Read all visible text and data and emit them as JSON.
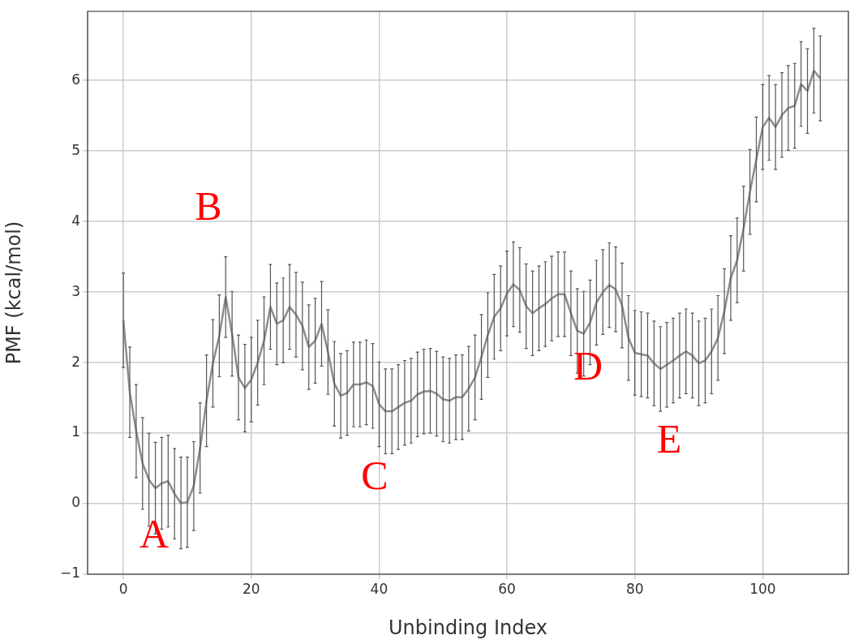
{
  "chart_data": {
    "type": "line",
    "xlabel": "Unbinding Index",
    "ylabel": "PMF (kcal/mol)",
    "x": [
      0,
      1,
      2,
      3,
      4,
      5,
      6,
      7,
      8,
      9,
      10,
      11,
      12,
      13,
      14,
      15,
      16,
      17,
      18,
      19,
      20,
      21,
      22,
      23,
      24,
      25,
      26,
      27,
      28,
      29,
      30,
      31,
      32,
      33,
      34,
      35,
      36,
      37,
      38,
      39,
      40,
      41,
      42,
      43,
      44,
      45,
      46,
      47,
      48,
      49,
      50,
      51,
      52,
      53,
      54,
      55,
      56,
      57,
      58,
      59,
      60,
      61,
      62,
      63,
      64,
      65,
      66,
      67,
      68,
      69,
      70,
      71,
      72,
      73,
      74,
      75,
      76,
      77,
      78,
      79,
      80,
      81,
      82,
      83,
      84,
      85,
      86,
      87,
      88,
      89,
      90,
      91,
      92,
      93,
      94,
      95,
      96,
      97,
      98,
      99,
      100,
      101,
      102,
      103,
      104,
      105,
      106,
      107,
      108,
      109
    ],
    "series": [
      {
        "color": "#8c8c8c",
        "values": [
          2.6,
          1.58,
          1.03,
          0.57,
          0.34,
          0.22,
          0.29,
          0.32,
          0.14,
          0.01,
          0.02,
          0.25,
          0.79,
          1.46,
          1.99,
          2.38,
          2.93,
          2.41,
          1.79,
          1.64,
          1.76,
          2.0,
          2.31,
          2.79,
          2.55,
          2.6,
          2.79,
          2.68,
          2.52,
          2.22,
          2.31,
          2.55,
          2.15,
          1.7,
          1.53,
          1.57,
          1.69,
          1.69,
          1.72,
          1.67,
          1.41,
          1.31,
          1.31,
          1.37,
          1.43,
          1.46,
          1.55,
          1.59,
          1.6,
          1.56,
          1.48,
          1.46,
          1.51,
          1.51,
          1.63,
          1.79,
          2.08,
          2.39,
          2.65,
          2.77,
          2.98,
          3.11,
          3.03,
          2.8,
          2.7,
          2.77,
          2.83,
          2.91,
          2.97,
          2.97,
          2.7,
          2.45,
          2.41,
          2.57,
          2.85,
          3.0,
          3.1,
          3.04,
          2.81,
          2.35,
          2.14,
          2.12,
          2.1,
          1.99,
          1.91,
          1.97,
          2.03,
          2.1,
          2.16,
          2.1,
          1.99,
          2.03,
          2.16,
          2.35,
          2.73,
          3.2,
          3.45,
          3.9,
          4.42,
          4.88,
          5.34,
          5.47,
          5.34,
          5.51,
          5.61,
          5.64,
          5.95,
          5.85,
          6.14,
          6.03
        ],
        "errors": [
          0.67,
          0.64,
          0.66,
          0.65,
          0.66,
          0.65,
          0.65,
          0.65,
          0.64,
          0.65,
          0.64,
          0.63,
          0.64,
          0.65,
          0.62,
          0.58,
          0.57,
          0.6,
          0.6,
          0.62,
          0.6,
          0.6,
          0.62,
          0.6,
          0.58,
          0.6,
          0.6,
          0.6,
          0.62,
          0.6,
          0.6,
          0.6,
          0.6,
          0.6,
          0.6,
          0.6,
          0.6,
          0.6,
          0.6,
          0.6,
          0.6,
          0.6,
          0.6,
          0.6,
          0.6,
          0.6,
          0.6,
          0.6,
          0.6,
          0.6,
          0.6,
          0.6,
          0.6,
          0.6,
          0.6,
          0.6,
          0.6,
          0.6,
          0.6,
          0.6,
          0.6,
          0.6,
          0.6,
          0.6,
          0.6,
          0.6,
          0.6,
          0.6,
          0.6,
          0.6,
          0.6,
          0.6,
          0.6,
          0.6,
          0.6,
          0.6,
          0.6,
          0.6,
          0.6,
          0.6,
          0.6,
          0.6,
          0.6,
          0.6,
          0.6,
          0.6,
          0.6,
          0.6,
          0.6,
          0.6,
          0.6,
          0.6,
          0.6,
          0.6,
          0.6,
          0.6,
          0.6,
          0.6,
          0.6,
          0.6,
          0.6,
          0.6,
          0.6,
          0.6,
          0.6,
          0.6,
          0.6,
          0.6,
          0.6,
          0.6
        ]
      }
    ],
    "xlim": [
      -5.6,
      113.4
    ],
    "ylim": [
      -1,
      6.98
    ],
    "xticks": [
      0,
      20,
      40,
      60,
      80,
      100
    ],
    "yticks": [
      -1,
      0,
      1,
      2,
      3,
      4,
      5,
      6
    ],
    "grid": true,
    "legend": false,
    "marker": "none",
    "line_style": "solid",
    "annotations": [
      "A",
      "B",
      "C",
      "D",
      "E"
    ]
  }
}
